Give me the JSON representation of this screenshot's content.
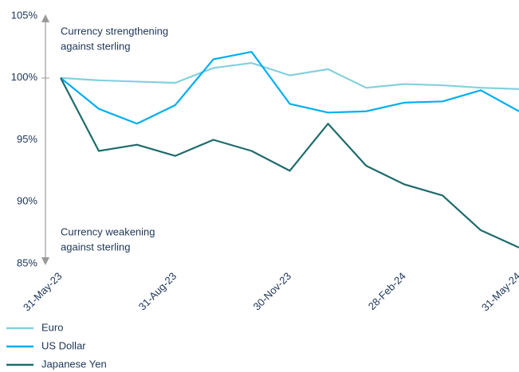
{
  "chart_data": {
    "type": "line",
    "categories": [
      "31-May-23",
      null,
      null,
      "31-Aug-23",
      null,
      null,
      "30-Nov-23",
      null,
      null,
      "28-Feb-24",
      null,
      null,
      "31-May-24"
    ],
    "series": [
      {
        "name": "Euro",
        "color": "#84d0dd",
        "values": [
          100,
          99.8,
          99.7,
          99.6,
          100.8,
          101.2,
          100.2,
          100.7,
          99.2,
          99.5,
          99.4,
          99.2,
          99.1
        ]
      },
      {
        "name": "US Dollar",
        "color": "#00aeef",
        "values": [
          100,
          97.5,
          96.3,
          97.8,
          101.5,
          102.1,
          97.9,
          97.2,
          97.3,
          98.0,
          98.1,
          99.0,
          97.3
        ]
      },
      {
        "name": "Japanese Yen",
        "color": "#1f6b6b",
        "values": [
          100,
          94.1,
          94.6,
          93.7,
          95.0,
          94.1,
          92.5,
          96.3,
          92.9,
          91.4,
          90.5,
          87.7,
          86.3
        ]
      }
    ],
    "ylim": [
      85,
      105
    ],
    "yticks": [
      {
        "value": 85,
        "label": "85%"
      },
      {
        "value": 90,
        "label": "90%"
      },
      {
        "value": 95,
        "label": "95%"
      },
      {
        "value": 100,
        "label": "100%"
      },
      {
        "value": 105,
        "label": "105%"
      }
    ],
    "annotations": [
      {
        "lines": [
          "Currency strengthening",
          "against sterling"
        ]
      },
      {
        "lines": [
          "Currency weakening",
          "against sterling"
        ]
      }
    ]
  }
}
